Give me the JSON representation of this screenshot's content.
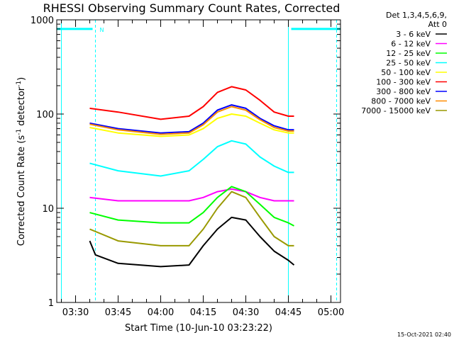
{
  "chart_data": {
    "type": "line",
    "title": "RHESSI Observing Summary Count Rates, Corrected",
    "xlabel": "Start Time (10-Jun-10 03:23:22)",
    "ylabel_main": "Corrected Count Rate (s",
    "ylabel_sup1": "-1",
    "ylabel_mid": " detector",
    "ylabel_sup2": "-1",
    "ylabel_end": ")",
    "ylabel": "Corrected Count Rate (s^-1 detector^-1)",
    "yscale": "log",
    "ylim": [
      1,
      1000
    ],
    "y_ticks": [
      {
        "value": 1,
        "label": "1"
      },
      {
        "value": 10,
        "label": "10"
      },
      {
        "value": 100,
        "label": "100"
      },
      {
        "value": 1000,
        "label": "1000"
      }
    ],
    "xlim": [
      "03:23:22",
      "05:03:22"
    ],
    "x_ticks": [
      {
        "t": "03:30",
        "label": "03:30"
      },
      {
        "t": "03:45",
        "label": "03:45"
      },
      {
        "t": "04:00",
        "label": "04:00"
      },
      {
        "t": "04:15",
        "label": "04:15"
      },
      {
        "t": "04:30",
        "label": "04:30"
      },
      {
        "t": "04:45",
        "label": "04:45"
      },
      {
        "t": "05:00",
        "label": "05:00"
      }
    ],
    "legend_header": [
      "Det 1,3,4,5,6,9,",
      "Att 0"
    ],
    "legend_position": "outside-right",
    "series": [
      {
        "name": "3 - 6 keV",
        "color": "#000000",
        "points": [
          [
            "03:35",
            4.5
          ],
          [
            "03:37",
            3.2
          ],
          [
            "03:45",
            2.6
          ],
          [
            "04:00",
            2.4
          ],
          [
            "04:10",
            2.5
          ],
          [
            "04:15",
            4
          ],
          [
            "04:20",
            6
          ],
          [
            "04:25",
            8
          ],
          [
            "04:30",
            7.5
          ],
          [
            "04:35",
            5
          ],
          [
            "04:40",
            3.5
          ],
          [
            "04:45",
            2.8
          ],
          [
            "04:47",
            2.5
          ]
        ]
      },
      {
        "name": "6 - 12 keV",
        "color": "#ff00ff",
        "points": [
          [
            "03:35",
            13
          ],
          [
            "03:45",
            12
          ],
          [
            "04:00",
            12
          ],
          [
            "04:10",
            12
          ],
          [
            "04:15",
            13
          ],
          [
            "04:20",
            15
          ],
          [
            "04:25",
            16
          ],
          [
            "04:30",
            15
          ],
          [
            "04:35",
            13
          ],
          [
            "04:40",
            12
          ],
          [
            "04:45",
            12
          ],
          [
            "04:47",
            12
          ]
        ]
      },
      {
        "name": "12 - 25 keV",
        "color": "#00ff00",
        "points": [
          [
            "03:35",
            9
          ],
          [
            "03:45",
            7.5
          ],
          [
            "04:00",
            7
          ],
          [
            "04:10",
            7
          ],
          [
            "04:15",
            9
          ],
          [
            "04:20",
            13
          ],
          [
            "04:25",
            17
          ],
          [
            "04:30",
            15
          ],
          [
            "04:35",
            11
          ],
          [
            "04:40",
            8
          ],
          [
            "04:45",
            7
          ],
          [
            "04:47",
            6.5
          ]
        ]
      },
      {
        "name": "25 - 50 keV",
        "color": "#00ffff",
        "points": [
          [
            "03:35",
            30
          ],
          [
            "03:45",
            25
          ],
          [
            "04:00",
            22
          ],
          [
            "04:10",
            25
          ],
          [
            "04:15",
            33
          ],
          [
            "04:20",
            45
          ],
          [
            "04:25",
            52
          ],
          [
            "04:30",
            48
          ],
          [
            "04:35",
            35
          ],
          [
            "04:40",
            28
          ],
          [
            "04:45",
            24
          ],
          [
            "04:47",
            24
          ]
        ]
      },
      {
        "name": "50 - 100 keV",
        "color": "#ffff00",
        "points": [
          [
            "03:35",
            72
          ],
          [
            "03:45",
            63
          ],
          [
            "04:00",
            58
          ],
          [
            "04:10",
            60
          ],
          [
            "04:15",
            70
          ],
          [
            "04:20",
            90
          ],
          [
            "04:25",
            100
          ],
          [
            "04:30",
            95
          ],
          [
            "04:35",
            80
          ],
          [
            "04:40",
            68
          ],
          [
            "04:45",
            63
          ],
          [
            "04:47",
            63
          ]
        ]
      },
      {
        "name": "100 - 300 keV",
        "color": "#ff0000",
        "points": [
          [
            "03:35",
            115
          ],
          [
            "03:45",
            105
          ],
          [
            "04:00",
            88
          ],
          [
            "04:10",
            95
          ],
          [
            "04:15",
            120
          ],
          [
            "04:20",
            170
          ],
          [
            "04:25",
            195
          ],
          [
            "04:30",
            180
          ],
          [
            "04:35",
            140
          ],
          [
            "04:40",
            105
          ],
          [
            "04:45",
            95
          ],
          [
            "04:47",
            95
          ]
        ]
      },
      {
        "name": "300 - 800 keV",
        "color": "#0000ff",
        "points": [
          [
            "03:35",
            80
          ],
          [
            "03:45",
            70
          ],
          [
            "04:00",
            63
          ],
          [
            "04:10",
            65
          ],
          [
            "04:15",
            80
          ],
          [
            "04:20",
            110
          ],
          [
            "04:25",
            125
          ],
          [
            "04:30",
            115
          ],
          [
            "04:35",
            90
          ],
          [
            "04:40",
            75
          ],
          [
            "04:45",
            68
          ],
          [
            "04:47",
            68
          ]
        ]
      },
      {
        "name": "800 - 7000 keV",
        "color": "#ff8c00",
        "points": [
          [
            "03:35",
            78
          ],
          [
            "03:45",
            68
          ],
          [
            "04:00",
            61
          ],
          [
            "04:10",
            63
          ],
          [
            "04:15",
            77
          ],
          [
            "04:20",
            105
          ],
          [
            "04:25",
            120
          ],
          [
            "04:30",
            110
          ],
          [
            "04:35",
            87
          ],
          [
            "04:40",
            72
          ],
          [
            "04:45",
            66
          ],
          [
            "04:47",
            66
          ]
        ]
      },
      {
        "name": "7000 - 15000 keV",
        "color": "#999900",
        "points": [
          [
            "03:35",
            6
          ],
          [
            "03:45",
            4.5
          ],
          [
            "04:00",
            4
          ],
          [
            "04:10",
            4
          ],
          [
            "04:15",
            6
          ],
          [
            "04:20",
            10
          ],
          [
            "04:25",
            15
          ],
          [
            "04:30",
            13
          ],
          [
            "04:35",
            8
          ],
          [
            "04:40",
            5
          ],
          [
            "04:45",
            4
          ],
          [
            "04:47",
            4
          ]
        ]
      }
    ],
    "attenuator_bars": [
      {
        "start": "03:23:22",
        "end": "03:36",
        "level": 800,
        "color": "#00ffff"
      },
      {
        "start": "04:46",
        "end": "05:03:22",
        "level": 800,
        "color": "#00ffff"
      }
    ],
    "attenuator_label": "N",
    "event_lines": [
      {
        "t": "03:25",
        "style": "solid",
        "color": "#00ffff"
      },
      {
        "t": "03:37",
        "style": "dashed",
        "color": "#00ffff"
      },
      {
        "t": "04:45",
        "style": "solid",
        "color": "#00ffff"
      },
      {
        "t": "05:02",
        "style": "dashed",
        "color": "#00ffff"
      }
    ],
    "timestamp": "15-Oct-2021 02:40"
  }
}
